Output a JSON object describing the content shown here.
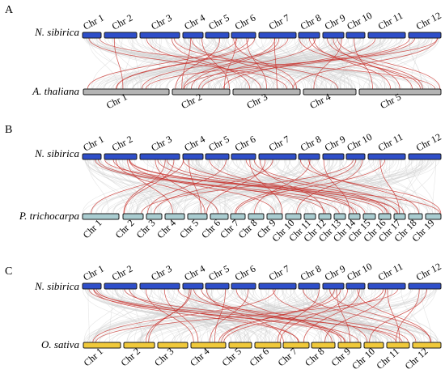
{
  "figure": {
    "panels": [
      {
        "letter": "A",
        "top_species": "N. sibirica",
        "bottom_species": "A. thaliana",
        "top_color": "#2e4ec9",
        "bottom_color": "#b4b4b4",
        "top_chromosomes": [
          "Chr 1",
          "Chr 2",
          "Chr 3",
          "Chr 4",
          "Chr 5",
          "Chr 6",
          "Chr 7",
          "Chr 8",
          "Chr 9",
          "Chr 10",
          "Chr 11",
          "Chr 12"
        ],
        "bottom_chromosomes": [
          "Chr 1",
          "Chr 2",
          "Chr 3",
          "Chr 4",
          "Chr 5"
        ]
      },
      {
        "letter": "B",
        "top_species": "N. sibirica",
        "bottom_species": "P. trichocarpa",
        "top_color": "#2e4ec9",
        "bottom_color": "#a9ccd0",
        "top_chromosomes": [
          "Chr 1",
          "Chr 2",
          "Chr 3",
          "Chr 4",
          "Chr 5",
          "Chr 6",
          "Chr 7",
          "Chr 8",
          "Chr 9",
          "Chr 10",
          "Chr 11",
          "Chr 12"
        ],
        "bottom_chromosomes": [
          "Chr 1",
          "Chr 2",
          "Chr 3",
          "Chr 4",
          "Chr 5",
          "Chr 6",
          "Chr 7",
          "Chr 8",
          "Chr 9",
          "Chr 10",
          "Chr 11",
          "Chr 12",
          "Chr 13",
          "Chr 14",
          "Chr 15",
          "Chr 16",
          "Chr 17",
          "Chr 18",
          "Chr 19"
        ]
      },
      {
        "letter": "C",
        "top_species": "N. sibirica",
        "bottom_species": "O. sativa",
        "top_color": "#2e4ec9",
        "bottom_color": "#f0c93a",
        "top_chromosomes": [
          "Chr 1",
          "Chr 2",
          "Chr 3",
          "Chr 4",
          "Chr 5",
          "Chr 6",
          "Chr 7",
          "Chr 8",
          "Chr 9",
          "Chr 10",
          "Chr 11",
          "Chr 12"
        ],
        "bottom_chromosomes": [
          "Chr 1",
          "Chr 2",
          "Chr 3",
          "Chr 4",
          "Chr 5",
          "Chr 6",
          "Chr 7",
          "Chr 8",
          "Chr 9",
          "Chr 10",
          "Chr 11",
          "Chr 12"
        ]
      }
    ],
    "colors": {
      "background_link": "#cfcfcf",
      "highlight_link": "#c8322d"
    }
  }
}
